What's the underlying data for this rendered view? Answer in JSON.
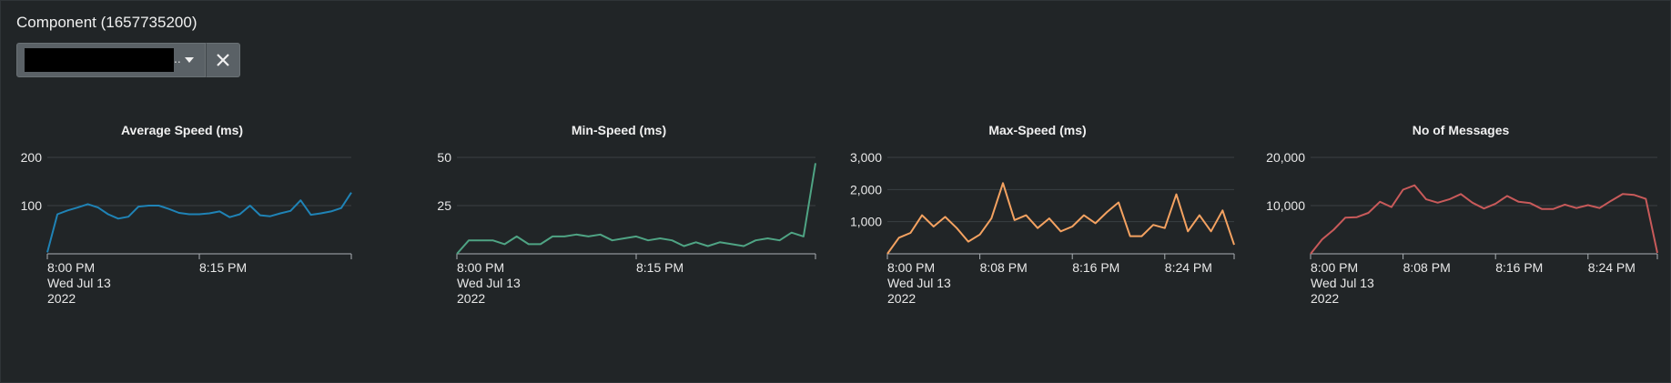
{
  "panel": {
    "title": "Component (1657735200)"
  },
  "filter": {
    "ellipsis": "..",
    "clear_icon": "close-icon",
    "dropdown_icon": "caret-down-icon"
  },
  "colors": {
    "background": "#212527",
    "grid": "#3a3f43",
    "axis": "#aab0b4",
    "series": [
      "#1f83b6",
      "#4fa484",
      "#f4a261",
      "#c85a5a"
    ]
  },
  "chart_data": [
    {
      "type": "line",
      "title": "Average Speed (ms)",
      "ylim": [
        0,
        200
      ],
      "yticks": [
        100,
        200
      ],
      "ytick_labels": [
        "100",
        "200"
      ],
      "xlim": [
        0,
        30
      ],
      "xticks": [
        0,
        15
      ],
      "xtick_labels": [
        [
          "8:00 PM",
          "Wed Jul 13",
          "2022"
        ],
        [
          "8:15 PM"
        ]
      ],
      "x": [
        0,
        1,
        2,
        3,
        4,
        5,
        6,
        7,
        8,
        9,
        10,
        11,
        12,
        13,
        14,
        15,
        16,
        17,
        18,
        19,
        20,
        21,
        22,
        23,
        24,
        25,
        26,
        27,
        28,
        29,
        30
      ],
      "values": [
        3,
        82,
        90,
        96,
        103,
        96,
        82,
        73,
        77,
        98,
        100,
        100,
        93,
        85,
        82,
        82,
        84,
        88,
        76,
        82,
        100,
        80,
        78,
        84,
        89,
        111,
        81,
        84,
        88,
        95,
        127
      ]
    },
    {
      "type": "line",
      "title": "Min-Speed (ms)",
      "ylim": [
        0,
        50
      ],
      "yticks": [
        25,
        50
      ],
      "ytick_labels": [
        "25",
        "50"
      ],
      "xlim": [
        0,
        30
      ],
      "xticks": [
        0,
        15
      ],
      "xtick_labels": [
        [
          "8:00 PM",
          "Wed Jul 13",
          "2022"
        ],
        [
          "8:15 PM"
        ]
      ],
      "x": [
        0,
        1,
        2,
        3,
        4,
        5,
        6,
        7,
        8,
        9,
        10,
        11,
        12,
        13,
        14,
        15,
        16,
        17,
        18,
        19,
        20,
        21,
        22,
        23,
        24,
        25,
        26,
        27,
        28,
        29,
        30
      ],
      "values": [
        0,
        7,
        7,
        7,
        5,
        9,
        5,
        5,
        9,
        9,
        10,
        9,
        10,
        7,
        8,
        9,
        7,
        8,
        7,
        4,
        6,
        4,
        6,
        5,
        4,
        7,
        8,
        7,
        11,
        9,
        47
      ]
    },
    {
      "type": "line",
      "title": "Max-Speed (ms)",
      "ylim": [
        0,
        3000
      ],
      "yticks": [
        1000,
        2000,
        3000
      ],
      "ytick_labels": [
        "1,000",
        "2,000",
        "3,000"
      ],
      "xlim": [
        0,
        30
      ],
      "xticks": [
        0,
        8,
        16,
        24
      ],
      "xtick_labels": [
        [
          "8:00 PM",
          "Wed Jul 13",
          "2022"
        ],
        [
          "8:08 PM"
        ],
        [
          "8:16 PM"
        ],
        [
          "8:24 PM"
        ]
      ],
      "x": [
        0,
        1,
        2,
        3,
        4,
        5,
        6,
        7,
        8,
        9,
        10,
        11,
        12,
        13,
        14,
        15,
        16,
        17,
        18,
        19,
        20,
        21,
        22,
        23,
        24,
        25,
        26,
        27,
        28,
        29,
        30
      ],
      "values": [
        0,
        500,
        650,
        1200,
        850,
        1150,
        800,
        380,
        600,
        1100,
        2200,
        1050,
        1200,
        800,
        1100,
        700,
        850,
        1200,
        950,
        1300,
        1600,
        550,
        550,
        900,
        800,
        1850,
        700,
        1200,
        700,
        1350,
        280
      ]
    },
    {
      "type": "line",
      "title": "No of Messages",
      "ylim": [
        0,
        20000
      ],
      "yticks": [
        10000,
        20000
      ],
      "ytick_labels": [
        "10,000",
        "20,000"
      ],
      "xlim": [
        0,
        30
      ],
      "xticks": [
        0,
        8,
        16,
        24
      ],
      "xtick_labels": [
        [
          "8:00 PM",
          "Wed Jul 13",
          "2022"
        ],
        [
          "8:08 PM"
        ],
        [
          "8:16 PM"
        ],
        [
          "8:24 PM"
        ]
      ],
      "x": [
        0,
        1,
        2,
        3,
        4,
        5,
        6,
        7,
        8,
        9,
        10,
        11,
        12,
        13,
        14,
        15,
        16,
        17,
        18,
        19,
        20,
        21,
        22,
        23,
        24,
        25,
        26,
        27,
        28,
        29,
        30
      ],
      "values": [
        0,
        3000,
        5000,
        7500,
        7600,
        8500,
        10800,
        9700,
        13300,
        14200,
        11300,
        10600,
        11300,
        12400,
        10600,
        9400,
        10400,
        12000,
        10800,
        10500,
        9300,
        9300,
        10200,
        9500,
        10100,
        9500,
        11000,
        12400,
        12200,
        11400,
        200
      ]
    }
  ]
}
